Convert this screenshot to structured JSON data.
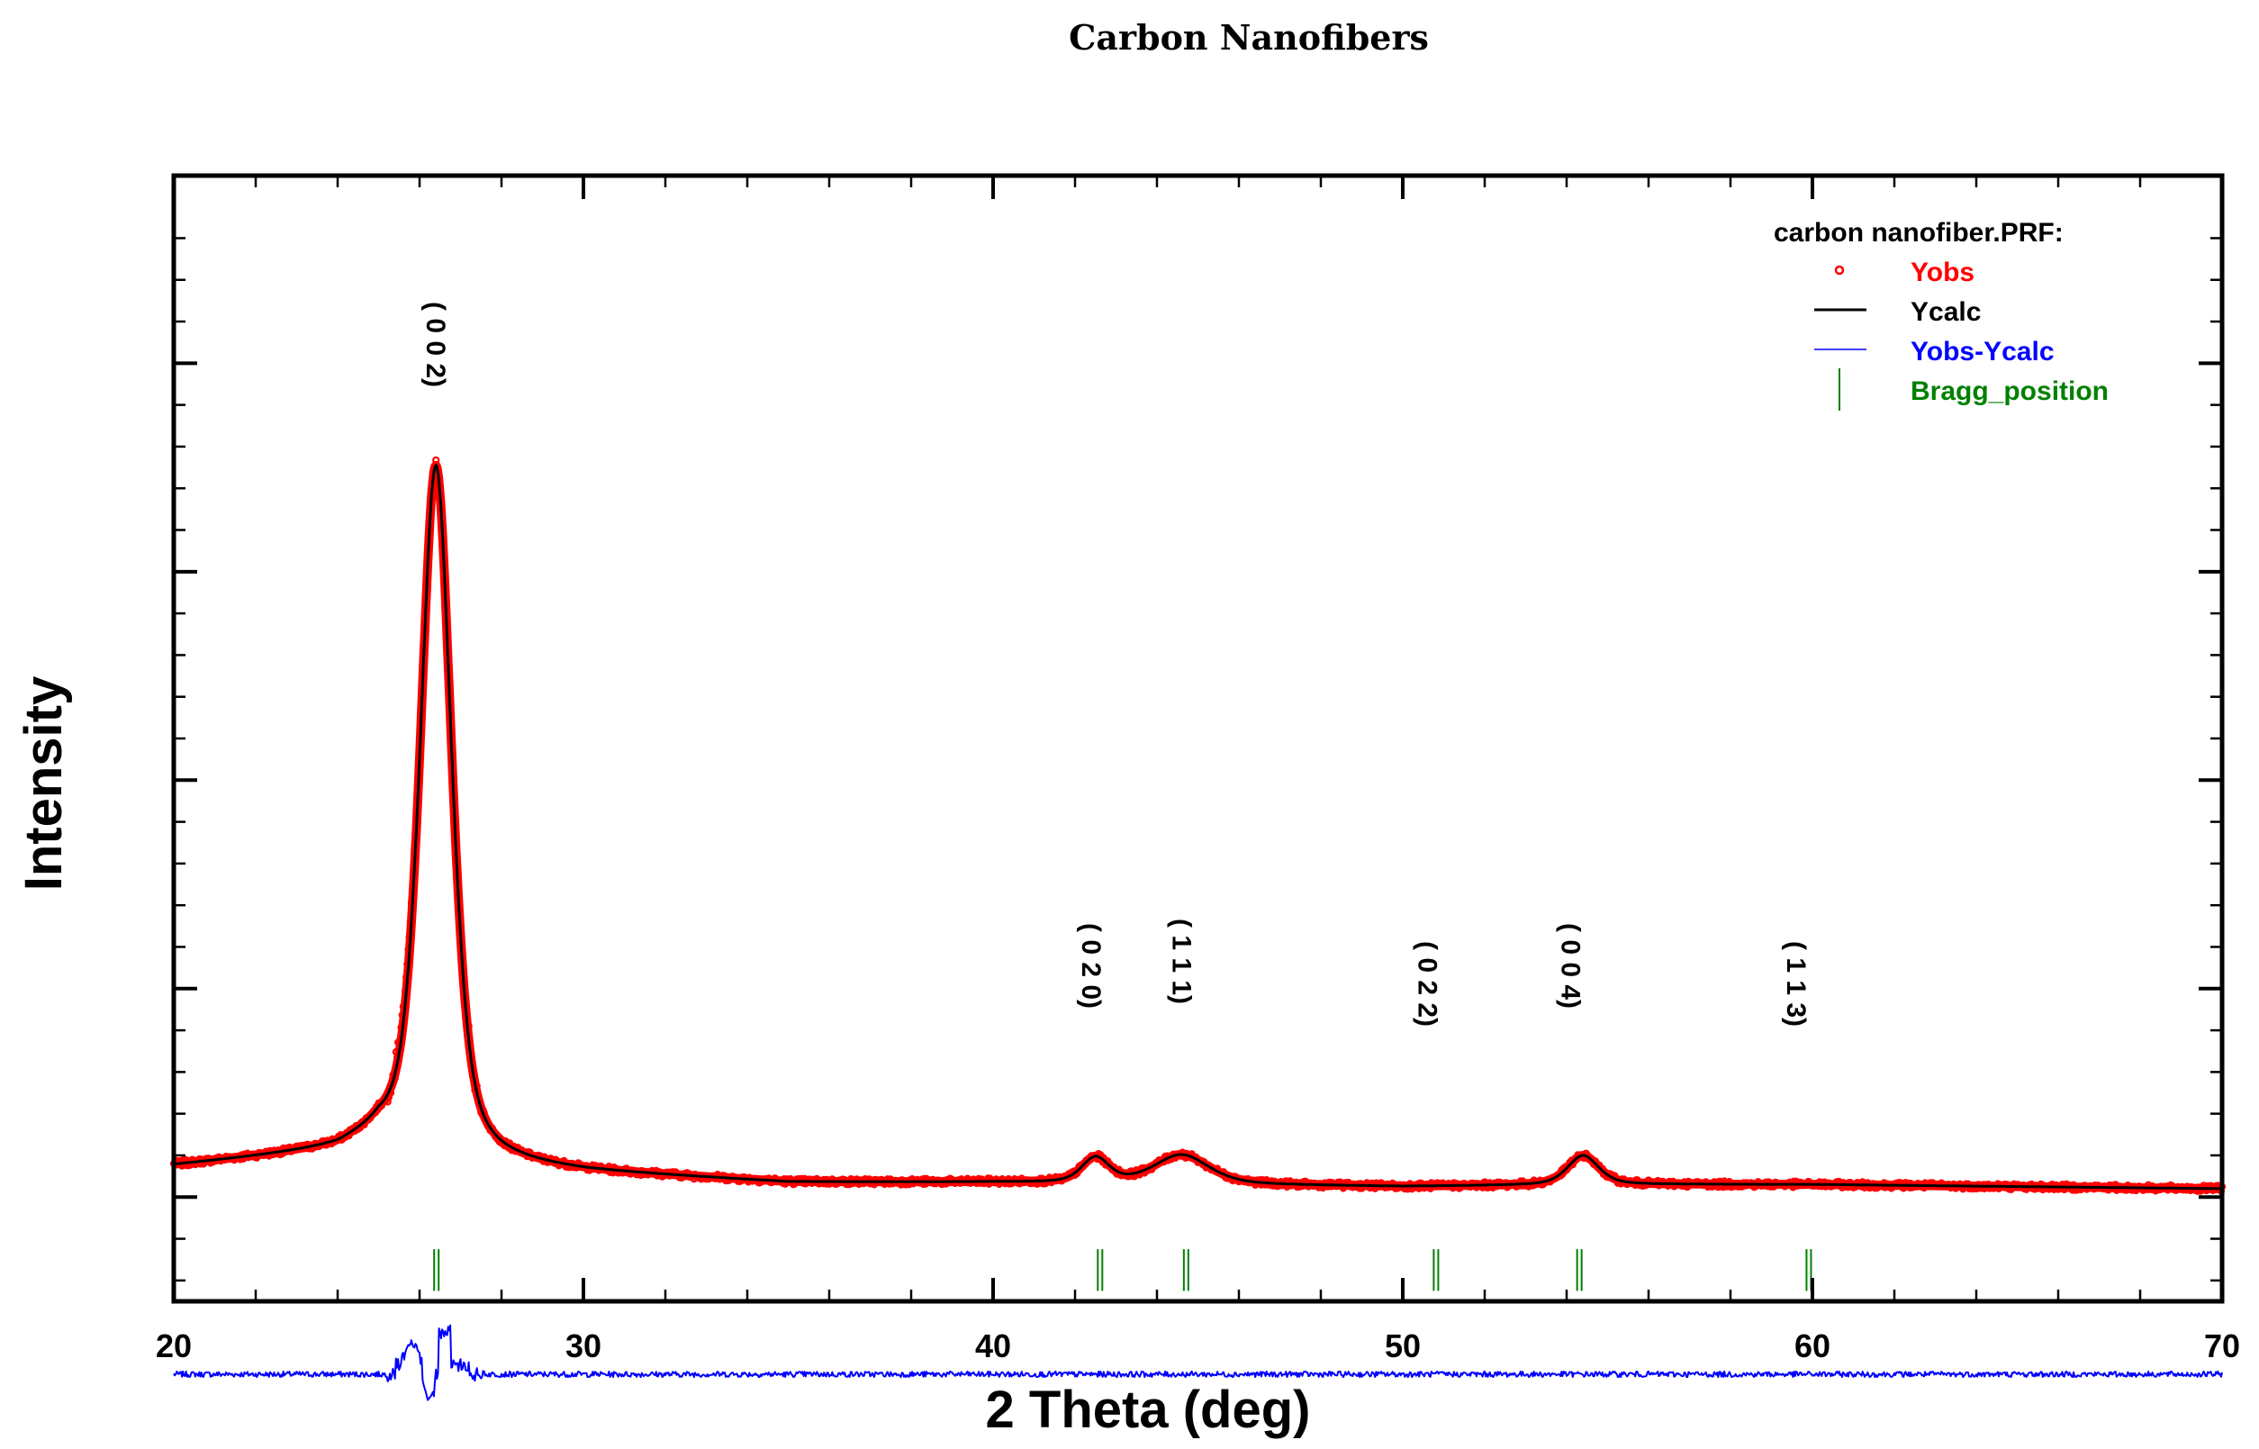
{
  "chart_data": {
    "type": "line",
    "title": "Carbon Nanofibers",
    "xlabel": "2 Theta (deg)",
    "ylabel": "Intensity",
    "xlim": [
      20,
      70
    ],
    "ylim": [
      -0.5,
      4.9
    ],
    "xticks": [
      20,
      30,
      40,
      50,
      60,
      70
    ],
    "y_tick_labels_shown": false,
    "legend": {
      "placement": "top-right",
      "title": "carbon nanofiber.PRF:",
      "entries": [
        {
          "name": "Yobs",
          "color": "#ff0000",
          "marker": "open-circle"
        },
        {
          "name": "Ycalc",
          "color": "#000000",
          "marker": "line"
        },
        {
          "name": "Yobs-Ycalc",
          "color": "#0000ff",
          "marker": "line"
        },
        {
          "name": "Bragg_position",
          "color": "#008000",
          "marker": "vertical-tick"
        }
      ]
    },
    "series": [
      {
        "name": "Yobs",
        "color": "#ff0000"
      },
      {
        "name": "Ycalc",
        "color": "#000000"
      },
      {
        "name": "Yobs-Ycalc",
        "color": "#0000ff"
      }
    ],
    "bragg_positions": [
      26.4,
      42.6,
      44.7,
      50.8,
      54.3,
      59.9
    ],
    "reflections": [
      {
        "hkl": "( 0 0 2)",
        "two_theta": 26.4
      },
      {
        "hkl": "( 0 2 0)",
        "two_theta": 42.4
      },
      {
        "hkl": "( 1 1 1)",
        "two_theta": 44.6
      },
      {
        "hkl": "( 0 2 2)",
        "two_theta": 50.6
      },
      {
        "hkl": "( 0 0 4)",
        "two_theta": 54.1
      },
      {
        "hkl": "( 1 1 3)",
        "two_theta": 59.6
      }
    ],
    "profile": {
      "background": [
        [
          20,
          0.15
        ],
        [
          24,
          0.22
        ],
        [
          25,
          0.28
        ],
        [
          27,
          0.18
        ],
        [
          28,
          0.15
        ],
        [
          30,
          0.12
        ],
        [
          35,
          0.07
        ],
        [
          40,
          0.07
        ],
        [
          45,
          0.06
        ],
        [
          50,
          0.05
        ],
        [
          55,
          0.06
        ],
        [
          60,
          0.06
        ],
        [
          65,
          0.05
        ],
        [
          70,
          0.04
        ]
      ],
      "peaks": [
        {
          "center": 26.4,
          "height": 3.3,
          "fwhm": 0.9
        },
        {
          "center": 42.5,
          "height": 0.12,
          "fwhm": 0.8
        },
        {
          "center": 44.6,
          "height": 0.14,
          "fwhm": 1.6
        },
        {
          "center": 54.4,
          "height": 0.14,
          "fwhm": 0.9
        }
      ],
      "difference_offset": -0.85,
      "bragg_tick_range": [
        -0.25,
        -0.45
      ]
    },
    "grid": false
  }
}
